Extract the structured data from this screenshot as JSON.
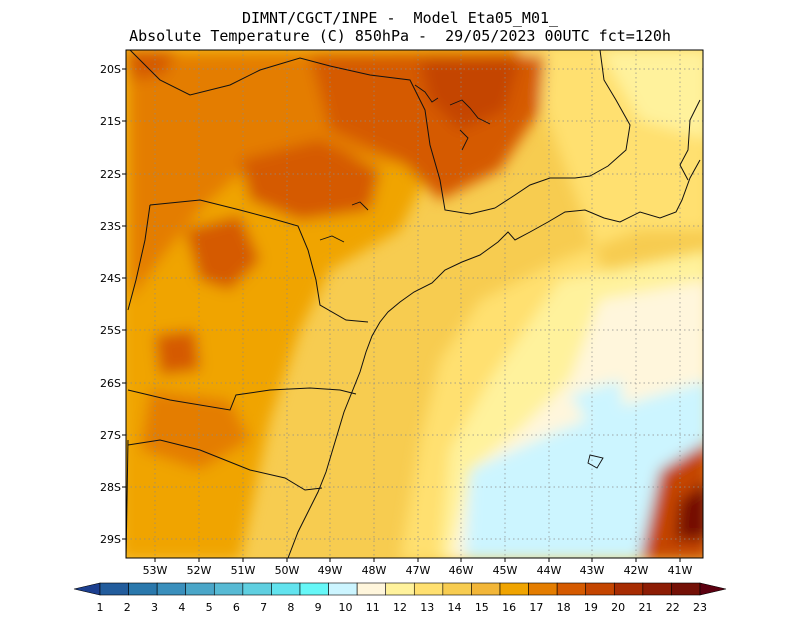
{
  "header": {
    "line1": "DIMNT/CGCT/INPE -  Model Eta05_M01_",
    "line2": "Absolute Temperature (C) 850hPa -  29/05/2023 00UTC fct=120h"
  },
  "map": {
    "lat_labels": [
      "20S",
      "21S",
      "22S",
      "23S",
      "24S",
      "25S",
      "26S",
      "27S",
      "28S",
      "29S"
    ],
    "lon_labels": [
      "53W",
      "52W",
      "51W",
      "50W",
      "49W",
      "48W",
      "47W",
      "46W",
      "45W",
      "44W",
      "43W",
      "42W",
      "41W"
    ],
    "lat_range": [
      -29.4,
      -19.8
    ],
    "lon_range": [
      -53.8,
      -40.5
    ],
    "grid": "dotted",
    "field": "temperature 850hPa (C)"
  },
  "colorbar": {
    "labels": [
      "1",
      "2",
      "3",
      "4",
      "5",
      "6",
      "7",
      "8",
      "9",
      "10",
      "11",
      "12",
      "13",
      "14",
      "15",
      "16",
      "17",
      "18",
      "19",
      "20",
      "21",
      "22",
      "23"
    ],
    "colors": [
      "#1c3f8f",
      "#225c9c",
      "#2a78ac",
      "#3a8fbc",
      "#4aa6c8",
      "#57bad4",
      "#5fcfe0",
      "#62e3ee",
      "#66f7f7",
      "#ccf5ff",
      "#fff6dc",
      "#fff29c",
      "#ffe070",
      "#f7cc50",
      "#f2b638",
      "#f0a400",
      "#e47d00",
      "#d55a00",
      "#c44500",
      "#a72c02",
      "#8c1c04",
      "#741006",
      "#5c0010"
    ]
  }
}
